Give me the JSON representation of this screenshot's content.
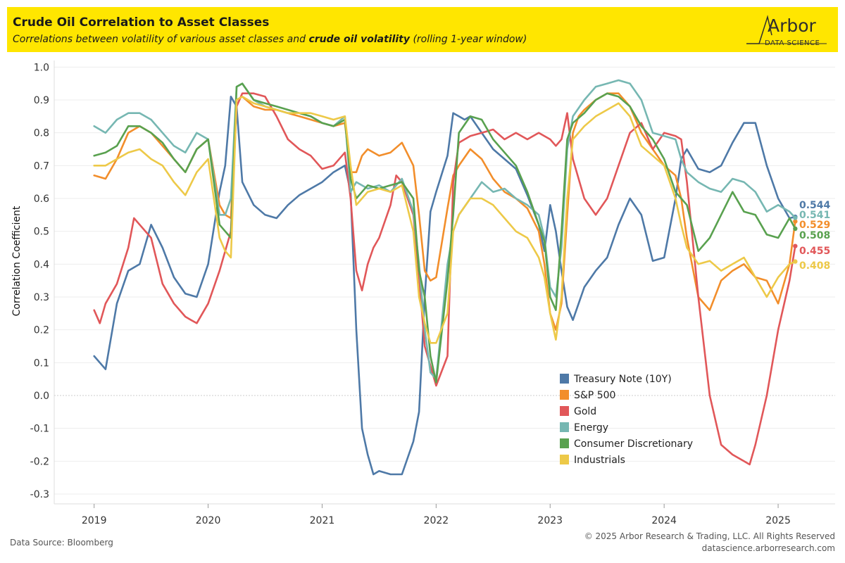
{
  "header": {
    "title": "Crude Oil Correlation to Asset Classes",
    "subtitle_pre": "Correlations between volatility of various asset classes and ",
    "subtitle_bold": "crude oil volatility",
    "subtitle_post": " (rolling 1-year window)",
    "background": "#ffe600",
    "logo_name": "Arbor",
    "logo_sub": "DATA SCIENCE"
  },
  "footer": {
    "source": "Data Source: Bloomberg",
    "copyright": "© 2025 Arbor Research & Trading, LLC. All Rights Reserved",
    "website": "datascience.arborresearch.com"
  },
  "chart_data": {
    "type": "line",
    "ylabel": "Correlation Coefficient",
    "xlabel": "",
    "ylim": [
      -0.33,
      1.02
    ],
    "xlim": [
      2018.65,
      2025.5
    ],
    "yticks": [
      1.0,
      0.9,
      0.8,
      0.7,
      0.6,
      0.5,
      0.4,
      0.3,
      0.2,
      0.1,
      0.0,
      -0.1,
      -0.2,
      -0.3
    ],
    "yticklabels": [
      "1.0",
      "0.9",
      "0.8",
      "0.7",
      "0.6",
      "0.5",
      "0.4",
      "0.3",
      "0.2",
      "0.1",
      "0.0",
      "-0.1",
      "-0.2",
      "-0.3"
    ],
    "xticks": [
      2019,
      2020,
      2021,
      2022,
      2023,
      2024,
      2025
    ],
    "xticklabels": [
      "2019",
      "2020",
      "2021",
      "2022",
      "2023",
      "2024",
      "2025"
    ],
    "grid": true,
    "legend_position": "bottom-right",
    "series": [
      {
        "name": "Treasury Note (10Y)",
        "color": "#4e79a7",
        "end_label": "0.544",
        "x": [
          2019.0,
          2019.1,
          2019.2,
          2019.3,
          2019.4,
          2019.5,
          2019.6,
          2019.7,
          2019.8,
          2019.9,
          2020.0,
          2020.1,
          2020.15,
          2020.2,
          2020.25,
          2020.3,
          2020.4,
          2020.5,
          2020.6,
          2020.7,
          2020.8,
          2020.9,
          2021.0,
          2021.1,
          2021.2,
          2021.25,
          2021.3,
          2021.35,
          2021.4,
          2021.45,
          2021.5,
          2021.6,
          2021.7,
          2021.8,
          2021.85,
          2021.9,
          2021.95,
          2022.0,
          2022.1,
          2022.15,
          2022.2,
          2022.25,
          2022.3,
          2022.4,
          2022.5,
          2022.6,
          2022.7,
          2022.8,
          2022.9,
          2022.95,
          2023.0,
          2023.05,
          2023.1,
          2023.15,
          2023.2,
          2023.3,
          2023.4,
          2023.5,
          2023.6,
          2023.7,
          2023.8,
          2023.9,
          2024.0,
          2024.1,
          2024.15,
          2024.2,
          2024.3,
          2024.4,
          2024.5,
          2024.6,
          2024.7,
          2024.8,
          2024.9,
          2025.0,
          2025.1,
          2025.15
        ],
        "y": [
          0.12,
          0.08,
          0.28,
          0.38,
          0.4,
          0.52,
          0.45,
          0.36,
          0.31,
          0.3,
          0.4,
          0.62,
          0.7,
          0.91,
          0.88,
          0.65,
          0.58,
          0.55,
          0.54,
          0.58,
          0.61,
          0.63,
          0.65,
          0.68,
          0.7,
          0.62,
          0.2,
          -0.1,
          -0.18,
          -0.24,
          -0.23,
          -0.24,
          -0.24,
          -0.14,
          -0.05,
          0.3,
          0.56,
          0.62,
          0.73,
          0.86,
          0.85,
          0.84,
          0.85,
          0.8,
          0.75,
          0.72,
          0.69,
          0.61,
          0.52,
          0.44,
          0.58,
          0.5,
          0.38,
          0.27,
          0.23,
          0.33,
          0.38,
          0.42,
          0.52,
          0.6,
          0.55,
          0.41,
          0.42,
          0.6,
          0.72,
          0.75,
          0.69,
          0.68,
          0.7,
          0.77,
          0.83,
          0.83,
          0.7,
          0.6,
          0.54,
          0.544
        ]
      },
      {
        "name": "S&P 500",
        "color": "#f28e2b",
        "end_label": "0.529",
        "x": [
          2019.0,
          2019.1,
          2019.2,
          2019.3,
          2019.4,
          2019.5,
          2019.6,
          2019.7,
          2019.8,
          2019.9,
          2020.0,
          2020.1,
          2020.15,
          2020.2,
          2020.25,
          2020.3,
          2020.4,
          2020.5,
          2020.6,
          2020.7,
          2020.8,
          2020.9,
          2021.0,
          2021.1,
          2021.2,
          2021.25,
          2021.3,
          2021.35,
          2021.4,
          2021.5,
          2021.6,
          2021.7,
          2021.8,
          2021.85,
          2021.9,
          2021.95,
          2022.0,
          2022.1,
          2022.15,
          2022.2,
          2022.3,
          2022.4,
          2022.5,
          2022.6,
          2022.7,
          2022.8,
          2022.9,
          2022.95,
          2023.0,
          2023.05,
          2023.1,
          2023.15,
          2023.2,
          2023.25,
          2023.3,
          2023.4,
          2023.5,
          2023.6,
          2023.7,
          2023.8,
          2023.9,
          2024.0,
          2024.1,
          2024.15,
          2024.2,
          2024.3,
          2024.4,
          2024.5,
          2024.6,
          2024.7,
          2024.8,
          2024.9,
          2025.0,
          2025.1,
          2025.15
        ],
        "y": [
          0.67,
          0.66,
          0.72,
          0.8,
          0.82,
          0.8,
          0.76,
          0.72,
          0.68,
          0.75,
          0.78,
          0.58,
          0.55,
          0.54,
          0.9,
          0.91,
          0.88,
          0.87,
          0.87,
          0.86,
          0.85,
          0.84,
          0.83,
          0.82,
          0.83,
          0.68,
          0.68,
          0.73,
          0.75,
          0.73,
          0.74,
          0.77,
          0.7,
          0.55,
          0.38,
          0.35,
          0.36,
          0.57,
          0.67,
          0.7,
          0.75,
          0.72,
          0.66,
          0.62,
          0.6,
          0.57,
          0.5,
          0.4,
          0.25,
          0.2,
          0.28,
          0.55,
          0.8,
          0.85,
          0.87,
          0.9,
          0.92,
          0.92,
          0.88,
          0.8,
          0.75,
          0.7,
          0.67,
          0.6,
          0.48,
          0.3,
          0.26,
          0.35,
          0.38,
          0.4,
          0.36,
          0.35,
          0.28,
          0.4,
          0.53
        ]
      },
      {
        "name": "Gold",
        "color": "#e15759",
        "end_label": "0.455",
        "x": [
          2019.0,
          2019.05,
          2019.1,
          2019.2,
          2019.3,
          2019.35,
          2019.4,
          2019.5,
          2019.6,
          2019.7,
          2019.8,
          2019.85,
          2019.9,
          2020.0,
          2020.1,
          2020.2,
          2020.25,
          2020.3,
          2020.4,
          2020.5,
          2020.6,
          2020.7,
          2020.8,
          2020.9,
          2021.0,
          2021.1,
          2021.2,
          2021.25,
          2021.3,
          2021.35,
          2021.4,
          2021.45,
          2021.5,
          2021.6,
          2021.65,
          2021.7,
          2021.8,
          2021.85,
          2021.9,
          2022.0,
          2022.1,
          2022.15,
          2022.2,
          2022.3,
          2022.4,
          2022.5,
          2022.6,
          2022.7,
          2022.8,
          2022.9,
          2023.0,
          2023.05,
          2023.1,
          2023.15,
          2023.2,
          2023.3,
          2023.4,
          2023.5,
          2023.6,
          2023.7,
          2023.8,
          2023.9,
          2024.0,
          2024.1,
          2024.15,
          2024.2,
          2024.3,
          2024.4,
          2024.5,
          2024.6,
          2024.7,
          2024.75,
          2024.8,
          2024.9,
          2025.0,
          2025.1,
          2025.15
        ],
        "y": [
          0.26,
          0.22,
          0.28,
          0.34,
          0.45,
          0.54,
          0.52,
          0.48,
          0.34,
          0.28,
          0.24,
          0.23,
          0.22,
          0.28,
          0.38,
          0.5,
          0.88,
          0.92,
          0.92,
          0.91,
          0.85,
          0.78,
          0.75,
          0.73,
          0.69,
          0.7,
          0.74,
          0.6,
          0.38,
          0.32,
          0.4,
          0.45,
          0.48,
          0.58,
          0.67,
          0.65,
          0.55,
          0.36,
          0.15,
          0.03,
          0.12,
          0.65,
          0.77,
          0.79,
          0.8,
          0.81,
          0.78,
          0.8,
          0.78,
          0.8,
          0.78,
          0.76,
          0.78,
          0.86,
          0.72,
          0.6,
          0.55,
          0.6,
          0.7,
          0.8,
          0.83,
          0.75,
          0.8,
          0.79,
          0.78,
          0.65,
          0.3,
          0.0,
          -0.15,
          -0.18,
          -0.2,
          -0.21,
          -0.15,
          0.0,
          0.2,
          0.35,
          0.455
        ]
      },
      {
        "name": "Energy",
        "color": "#76b7b2",
        "end_label": "0.541",
        "x": [
          2019.0,
          2019.1,
          2019.2,
          2019.3,
          2019.4,
          2019.5,
          2019.6,
          2019.7,
          2019.8,
          2019.9,
          2020.0,
          2020.1,
          2020.15,
          2020.2,
          2020.25,
          2020.3,
          2020.4,
          2020.5,
          2020.6,
          2020.7,
          2020.8,
          2020.9,
          2021.0,
          2021.1,
          2021.2,
          2021.25,
          2021.3,
          2021.4,
          2021.5,
          2021.6,
          2021.7,
          2021.8,
          2021.85,
          2021.9,
          2021.95,
          2022.0,
          2022.1,
          2022.15,
          2022.2,
          2022.3,
          2022.4,
          2022.5,
          2022.6,
          2022.7,
          2022.8,
          2022.9,
          2022.95,
          2023.0,
          2023.05,
          2023.1,
          2023.15,
          2023.2,
          2023.3,
          2023.4,
          2023.5,
          2023.6,
          2023.7,
          2023.8,
          2023.9,
          2024.0,
          2024.1,
          2024.15,
          2024.2,
          2024.3,
          2024.4,
          2024.5,
          2024.6,
          2024.7,
          2024.8,
          2024.9,
          2025.0,
          2025.1,
          2025.15
        ],
        "y": [
          0.82,
          0.8,
          0.84,
          0.86,
          0.86,
          0.84,
          0.8,
          0.76,
          0.74,
          0.8,
          0.78,
          0.55,
          0.55,
          0.6,
          0.94,
          0.95,
          0.9,
          0.88,
          0.87,
          0.86,
          0.86,
          0.85,
          0.83,
          0.82,
          0.85,
          0.62,
          0.65,
          0.63,
          0.64,
          0.62,
          0.66,
          0.56,
          0.4,
          0.2,
          0.07,
          0.05,
          0.4,
          0.5,
          0.55,
          0.6,
          0.65,
          0.62,
          0.63,
          0.6,
          0.58,
          0.55,
          0.48,
          0.33,
          0.3,
          0.45,
          0.75,
          0.85,
          0.9,
          0.94,
          0.95,
          0.96,
          0.95,
          0.9,
          0.8,
          0.79,
          0.78,
          0.72,
          0.68,
          0.65,
          0.63,
          0.62,
          0.66,
          0.65,
          0.62,
          0.56,
          0.58,
          0.56,
          0.541
        ]
      },
      {
        "name": "Consumer Discretionary",
        "color": "#59a14f",
        "end_label": "0.508",
        "x": [
          2019.0,
          2019.1,
          2019.2,
          2019.3,
          2019.4,
          2019.5,
          2019.6,
          2019.7,
          2019.8,
          2019.9,
          2020.0,
          2020.1,
          2020.15,
          2020.2,
          2020.25,
          2020.3,
          2020.4,
          2020.5,
          2020.6,
          2020.7,
          2020.8,
          2020.9,
          2021.0,
          2021.1,
          2021.2,
          2021.25,
          2021.3,
          2021.4,
          2021.5,
          2021.6,
          2021.7,
          2021.8,
          2021.85,
          2021.9,
          2021.95,
          2022.0,
          2022.1,
          2022.15,
          2022.2,
          2022.3,
          2022.4,
          2022.5,
          2022.6,
          2022.7,
          2022.8,
          2022.9,
          2022.95,
          2023.0,
          2023.05,
          2023.1,
          2023.15,
          2023.2,
          2023.3,
          2023.4,
          2023.5,
          2023.6,
          2023.7,
          2023.8,
          2023.9,
          2024.0,
          2024.1,
          2024.15,
          2024.2,
          2024.3,
          2024.4,
          2024.5,
          2024.6,
          2024.7,
          2024.8,
          2024.9,
          2025.0,
          2025.1,
          2025.15
        ],
        "y": [
          0.73,
          0.74,
          0.76,
          0.82,
          0.82,
          0.8,
          0.77,
          0.72,
          0.68,
          0.75,
          0.78,
          0.52,
          0.5,
          0.48,
          0.94,
          0.95,
          0.9,
          0.89,
          0.88,
          0.87,
          0.86,
          0.85,
          0.83,
          0.82,
          0.84,
          0.66,
          0.6,
          0.64,
          0.63,
          0.64,
          0.65,
          0.6,
          0.38,
          0.3,
          0.12,
          0.04,
          0.35,
          0.55,
          0.8,
          0.85,
          0.84,
          0.78,
          0.74,
          0.7,
          0.62,
          0.52,
          0.47,
          0.3,
          0.26,
          0.5,
          0.78,
          0.83,
          0.86,
          0.9,
          0.92,
          0.91,
          0.88,
          0.82,
          0.78,
          0.72,
          0.62,
          0.6,
          0.58,
          0.44,
          0.48,
          0.55,
          0.62,
          0.56,
          0.55,
          0.49,
          0.48,
          0.54,
          0.508
        ]
      },
      {
        "name": "Industrials",
        "color": "#edc948",
        "end_label": "0.408",
        "x": [
          2019.0,
          2019.1,
          2019.2,
          2019.3,
          2019.4,
          2019.5,
          2019.6,
          2019.7,
          2019.8,
          2019.9,
          2020.0,
          2020.1,
          2020.15,
          2020.2,
          2020.25,
          2020.3,
          2020.4,
          2020.5,
          2020.6,
          2020.7,
          2020.8,
          2020.9,
          2021.0,
          2021.1,
          2021.2,
          2021.25,
          2021.3,
          2021.4,
          2021.5,
          2021.6,
          2021.7,
          2021.8,
          2021.85,
          2021.9,
          2021.95,
          2022.0,
          2022.1,
          2022.15,
          2022.2,
          2022.3,
          2022.4,
          2022.5,
          2022.6,
          2022.7,
          2022.8,
          2022.9,
          2022.95,
          2023.0,
          2023.05,
          2023.1,
          2023.15,
          2023.2,
          2023.3,
          2023.4,
          2023.5,
          2023.6,
          2023.7,
          2023.8,
          2023.9,
          2024.0,
          2024.1,
          2024.15,
          2024.2,
          2024.3,
          2024.4,
          2024.5,
          2024.6,
          2024.7,
          2024.8,
          2024.9,
          2025.0,
          2025.1,
          2025.15
        ],
        "y": [
          0.7,
          0.7,
          0.72,
          0.74,
          0.75,
          0.72,
          0.7,
          0.65,
          0.61,
          0.68,
          0.72,
          0.48,
          0.44,
          0.42,
          0.9,
          0.91,
          0.89,
          0.88,
          0.87,
          0.86,
          0.86,
          0.86,
          0.85,
          0.84,
          0.85,
          0.7,
          0.58,
          0.62,
          0.63,
          0.62,
          0.64,
          0.5,
          0.3,
          0.22,
          0.16,
          0.16,
          0.25,
          0.5,
          0.55,
          0.6,
          0.6,
          0.58,
          0.54,
          0.5,
          0.48,
          0.42,
          0.36,
          0.25,
          0.17,
          0.3,
          0.6,
          0.78,
          0.82,
          0.85,
          0.87,
          0.89,
          0.85,
          0.76,
          0.73,
          0.7,
          0.6,
          0.52,
          0.45,
          0.4,
          0.41,
          0.38,
          0.4,
          0.42,
          0.36,
          0.3,
          0.36,
          0.4,
          0.408
        ]
      }
    ]
  }
}
